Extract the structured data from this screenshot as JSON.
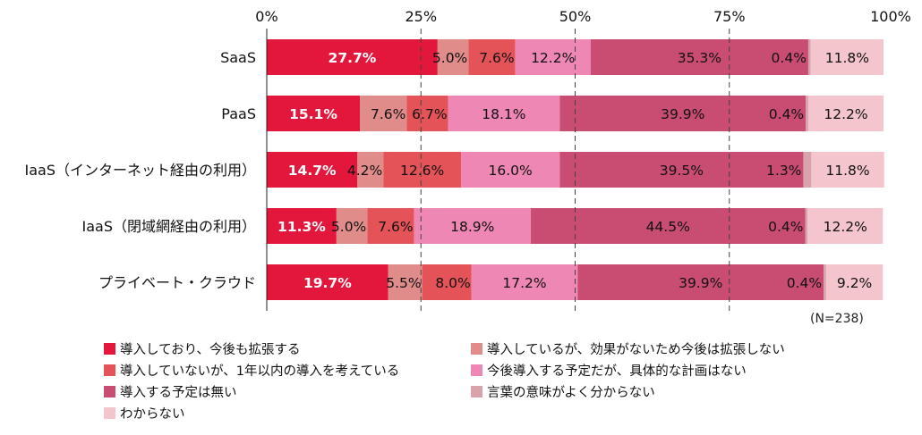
{
  "chart_data": {
    "type": "bar",
    "orientation": "horizontal",
    "stacked": true,
    "percent": true,
    "categories": [
      "SaaS",
      "PaaS",
      "IaaS（インターネット経由の利用）",
      "IaaS（閉域網経由の利用）",
      "プライベート・クラウド"
    ],
    "xlim": [
      0,
      100
    ],
    "xticks": [
      "0%",
      "25%",
      "50%",
      "75%",
      "100%"
    ],
    "grid": "dashed vertical lines at 25%, 50%, 75%",
    "legend_position": "bottom",
    "note": "(N=238)",
    "series": [
      {
        "name": "導入しており、今後も拡張する",
        "color": "#e2173b",
        "values": [
          27.7,
          15.1,
          14.7,
          11.3,
          19.7
        ]
      },
      {
        "name": "導入しているが、効果がないため今後は拡張しない",
        "color": "#df8c8a",
        "values": [
          5.0,
          7.6,
          4.2,
          5.0,
          5.5
        ]
      },
      {
        "name": "導入していないが、1年以内の導入を考えている",
        "color": "#e45357",
        "values": [
          7.6,
          6.7,
          12.6,
          7.6,
          8.0
        ]
      },
      {
        "name": "今後導入する予定だが、具体的な計画はない",
        "color": "#ee87b3",
        "values": [
          12.2,
          18.1,
          16.0,
          18.9,
          17.2
        ]
      },
      {
        "name": "導入する予定は無い",
        "color": "#c94c72",
        "values": [
          35.3,
          39.9,
          39.5,
          44.5,
          39.9
        ]
      },
      {
        "name": "言葉の意味がよく分からない",
        "color": "#d9a3ac",
        "values": [
          0.4,
          0.4,
          1.3,
          0.4,
          0.4
        ]
      },
      {
        "name": "わからない",
        "color": "#f4c5cd",
        "values": [
          11.8,
          12.2,
          11.8,
          12.2,
          9.2
        ]
      }
    ]
  }
}
